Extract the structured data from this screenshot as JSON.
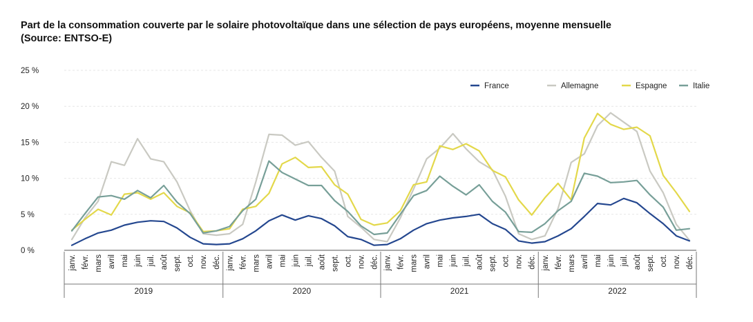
{
  "chart_data": {
    "type": "line",
    "title": "Part de la consommation couverte par le solaire photovoltaïque dans une sélection de pays européens, moyenne mensuelle",
    "subtitle": "(Source: ENTSO-E)",
    "xlabel": "",
    "ylabel": "",
    "ylim": [
      0,
      25
    ],
    "yticks": [
      "0 %",
      "5 %",
      "10 %",
      "15 %",
      "20 %",
      "25 %"
    ],
    "ytick_values": [
      0,
      5,
      10,
      15,
      20,
      25
    ],
    "grid": true,
    "legend_position": "top-right",
    "months": [
      "janv.",
      "févr.",
      "mars",
      "avril",
      "mai",
      "juin",
      "juil.",
      "août",
      "sept.",
      "oct.",
      "nov.",
      "déc."
    ],
    "years": [
      "2019",
      "2020",
      "2021",
      "2022"
    ],
    "series": [
      {
        "name": "France",
        "color": "#24478f",
        "values": [
          0.7,
          1.6,
          2.4,
          2.8,
          3.5,
          3.9,
          4.1,
          4.0,
          3.1,
          1.8,
          0.9,
          0.8,
          0.9,
          1.6,
          2.7,
          4.1,
          4.9,
          4.2,
          4.8,
          4.4,
          3.4,
          1.9,
          1.5,
          0.7,
          0.8,
          1.6,
          2.8,
          3.7,
          4.2,
          4.5,
          4.7,
          5.0,
          3.7,
          2.9,
          1.3,
          1.0,
          1.2,
          2.0,
          3.0,
          4.7,
          6.5,
          6.3,
          7.2,
          6.6,
          5.1,
          3.7,
          2.0,
          1.3
        ]
      },
      {
        "name": "Allemagne",
        "color": "#c9c9c2",
        "values": [
          1.5,
          4.5,
          6.8,
          12.3,
          11.8,
          15.5,
          12.7,
          12.3,
          9.5,
          5.5,
          2.3,
          2.1,
          2.3,
          3.6,
          9.5,
          16.1,
          16.0,
          14.6,
          15.1,
          12.9,
          11.0,
          4.7,
          3.2,
          1.5,
          1.2,
          4.5,
          8.5,
          12.7,
          14.2,
          16.2,
          14.1,
          12.3,
          11.2,
          7.5,
          2.3,
          1.5,
          2.0,
          5.8,
          12.2,
          13.4,
          17.3,
          19.1,
          17.8,
          16.5,
          11.0,
          8.0,
          3.6,
          1.4
        ]
      },
      {
        "name": "Espagne",
        "color": "#e3d84a",
        "values": [
          2.8,
          4.3,
          5.7,
          4.9,
          7.8,
          8.0,
          7.1,
          8.0,
          6.1,
          5.2,
          2.6,
          2.7,
          3.0,
          5.7,
          6.1,
          7.9,
          12.0,
          12.9,
          11.5,
          11.6,
          9.1,
          7.8,
          4.3,
          3.5,
          3.8,
          5.5,
          9.1,
          9.5,
          14.5,
          14.0,
          14.8,
          13.8,
          11.1,
          10.2,
          7.0,
          4.9,
          7.3,
          9.3,
          7.0,
          15.6,
          19.0,
          17.5,
          16.8,
          17.1,
          15.9,
          10.4,
          8.0,
          5.4
        ]
      },
      {
        "name": "Italie",
        "color": "#779f98",
        "values": [
          2.7,
          5.1,
          7.4,
          7.6,
          7.1,
          8.3,
          7.3,
          9.0,
          6.7,
          5.1,
          2.4,
          2.7,
          3.3,
          5.5,
          7.1,
          12.4,
          10.8,
          9.9,
          9.0,
          9.0,
          6.9,
          5.4,
          3.4,
          2.2,
          2.4,
          5.0,
          7.6,
          8.3,
          10.3,
          8.9,
          7.7,
          9.1,
          6.8,
          5.3,
          2.6,
          2.5,
          3.7,
          5.5,
          6.8,
          10.7,
          10.3,
          9.4,
          9.5,
          9.7,
          7.7,
          6.0,
          2.8,
          3.0
        ]
      }
    ]
  }
}
